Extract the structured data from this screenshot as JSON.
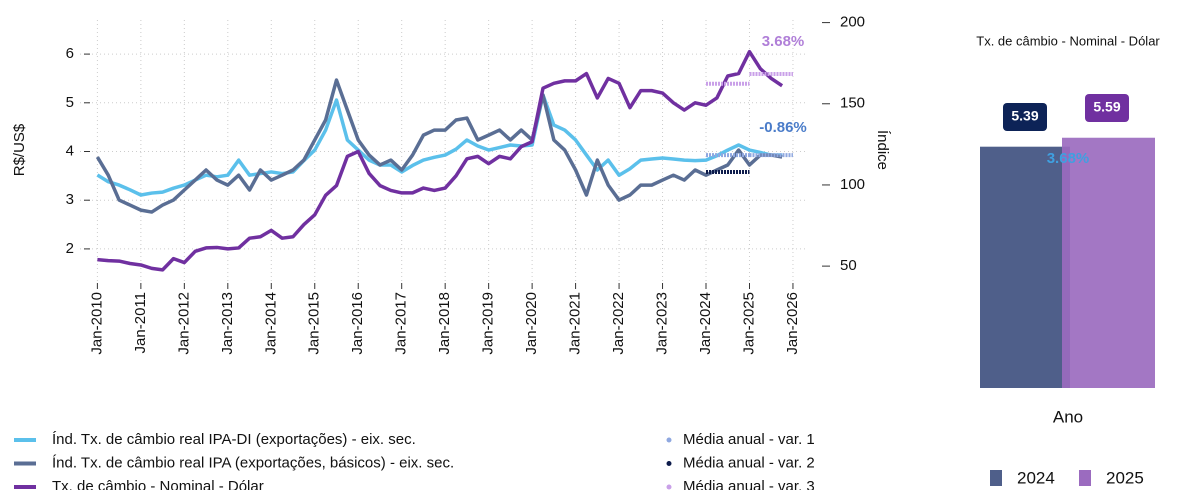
{
  "chart_data": [
    {
      "type": "line",
      "ylabel": "R$/US$",
      "y2label": "Índice",
      "x": [
        2010,
        2010.25,
        2010.5,
        2010.75,
        2011,
        2011.25,
        2011.5,
        2011.75,
        2012,
        2012.25,
        2012.5,
        2012.75,
        2013,
        2013.25,
        2013.5,
        2013.75,
        2014,
        2014.25,
        2014.5,
        2014.75,
        2015,
        2015.25,
        2015.5,
        2015.75,
        2016,
        2016.25,
        2016.5,
        2016.75,
        2017,
        2017.25,
        2017.5,
        2017.75,
        2018,
        2018.25,
        2018.5,
        2018.75,
        2019,
        2019.25,
        2019.5,
        2019.75,
        2020,
        2020.25,
        2020.5,
        2020.75,
        2021,
        2021.25,
        2021.5,
        2021.75,
        2022,
        2022.25,
        2022.5,
        2022.75,
        2023,
        2023.25,
        2023.5,
        2023.75,
        2024,
        2024.25,
        2024.5,
        2024.75,
        2025,
        2025.25,
        2025.5,
        2025.75
      ],
      "series": [
        {
          "name": "Índ. Tx. de câmbio real IPA-DI (exportações) - eix. sec.",
          "color": "#5bc0eb",
          "axis": "y2",
          "values": [
            106.1,
            102,
            99.9,
            97,
            93.8,
            95,
            95.6,
            98,
            99.9,
            103,
            106,
            105,
            106,
            115.3,
            106,
            107,
            108,
            107,
            108,
            115,
            121.5,
            133.8,
            152.3,
            127.7,
            121.5,
            115.3,
            112.3,
            112.3,
            108,
            112,
            115.3,
            117,
            118.4,
            122,
            127.7,
            124,
            121.5,
            123,
            124.6,
            124,
            124.6,
            155.4,
            136.9,
            133.8,
            127.7,
            118.4,
            109.2,
            115.3,
            106,
            110,
            115.3,
            116,
            116.6,
            116,
            115.3,
            115,
            115.3,
            118,
            121.5,
            124.6,
            121.5,
            120,
            118.4,
            118.4
          ]
        },
        {
          "name": "Índ. Tx. de câmbio real IPA (exportações, básicos) - eix. sec.",
          "color": "#5a6e94",
          "axis": "y2",
          "values": [
            117.2,
            106,
            90.7,
            87.6,
            84.5,
            83.3,
            87.6,
            90.7,
            96.9,
            103,
            109.2,
            103,
            99.9,
            106,
            96.9,
            109.2,
            103,
            106,
            109.2,
            115.3,
            127.7,
            140,
            164.6,
            146.1,
            127.7,
            118.4,
            112.3,
            115.3,
            109.2,
            118.4,
            130.7,
            133.8,
            133.8,
            140,
            141.2,
            127.7,
            130.7,
            133.8,
            127.7,
            133.8,
            127.7,
            155.4,
            127.7,
            121.5,
            109.2,
            93.8,
            115.3,
            99.9,
            90.7,
            93.8,
            99.9,
            99.9,
            103,
            106,
            103,
            109.2,
            106,
            109.2,
            112.3,
            121.5,
            112.3,
            118.4,
            118.4,
            117.2
          ]
        },
        {
          "name": "Tx. de câmbio - Nominal - Dólar",
          "color": "#7030a0",
          "values": [
            1.78,
            1.76,
            1.75,
            1.7,
            1.67,
            1.6,
            1.57,
            1.8,
            1.72,
            1.95,
            2.02,
            2.03,
            2.0,
            2.02,
            2.22,
            2.25,
            2.38,
            2.22,
            2.25,
            2.5,
            2.7,
            3.1,
            3.3,
            3.9,
            4.0,
            3.55,
            3.3,
            3.2,
            3.15,
            3.15,
            3.25,
            3.2,
            3.25,
            3.5,
            3.85,
            3.9,
            3.75,
            3.9,
            3.85,
            4.1,
            4.2,
            5.3,
            5.4,
            5.45,
            5.45,
            5.6,
            5.1,
            5.5,
            5.4,
            4.9,
            5.25,
            5.25,
            5.2,
            5.0,
            4.85,
            5.0,
            4.95,
            5.1,
            5.55,
            5.6,
            6.05,
            5.7,
            5.5,
            5.35
          ]
        }
      ],
      "annual_means": {
        "years": [
          2024,
          2025
        ],
        "series": [
          {
            "name": "Média anual - var. 1",
            "color": "#8fa8e0",
            "axis": "y2",
            "values": [
              118.4,
              118.4
            ]
          },
          {
            "name": "Média anual - var. 2",
            "color": "#0d1b4b",
            "axis": "y2",
            "values": [
              108,
              null
            ]
          },
          {
            "name": "Média anual - var. 3",
            "color": "#c9a0e8",
            "values": [
              5.39,
              5.59
            ]
          }
        ]
      },
      "annotations": [
        {
          "text": "3.68%",
          "color": "#b07fd8"
        },
        {
          "text": "-0.86%",
          "color": "#4a7cc9"
        }
      ],
      "xlim": [
        2009.6,
        2026.3
      ],
      "xticks": [
        {
          "value": 2010,
          "label": "Jan-2010"
        },
        {
          "value": 2011,
          "label": "Jan-2011"
        },
        {
          "value": 2012,
          "label": "Jan-2012"
        },
        {
          "value": 2013,
          "label": "Jan-2013"
        },
        {
          "value": 2014,
          "label": "Jan-2014"
        },
        {
          "value": 2015,
          "label": "Jan-2015"
        },
        {
          "value": 2016,
          "label": "Jan-2016"
        },
        {
          "value": 2017,
          "label": "Jan-2017"
        },
        {
          "value": 2018,
          "label": "Jan-2018"
        },
        {
          "value": 2019,
          "label": "Jan-2019"
        },
        {
          "value": 2020,
          "label": "Jan-2020"
        },
        {
          "value": 2021,
          "label": "Jan-2021"
        },
        {
          "value": 2022,
          "label": "Jan-2022"
        },
        {
          "value": 2023,
          "label": "Jan-2023"
        },
        {
          "value": 2024,
          "label": "Jan-2024"
        },
        {
          "value": 2025,
          "label": "Jan-2025"
        },
        {
          "value": 2026,
          "label": "Jan-2026"
        }
      ],
      "ylim": [
        1.3,
        6.7
      ],
      "yticks": [
        2,
        3,
        4,
        5,
        6
      ],
      "y2lim": [
        39.6,
        201.6
      ],
      "y2ticks": [
        50,
        100,
        150,
        200
      ],
      "grid": true
    },
    {
      "type": "bar",
      "title": "Tx. de câmbio - Nominal - Dólar",
      "xlabel": "Ano",
      "categories": [
        "2024",
        "2025"
      ],
      "values": [
        5.39,
        5.59
      ],
      "colors": [
        "#4f5f8a",
        "#9b6bbf"
      ],
      "label_colors": [
        "#0d2357",
        "#7030a0"
      ],
      "annotation": {
        "text": "3.68%",
        "color": "#3fa0e0"
      },
      "ylim": [
        0,
        6.5
      ]
    }
  ]
}
